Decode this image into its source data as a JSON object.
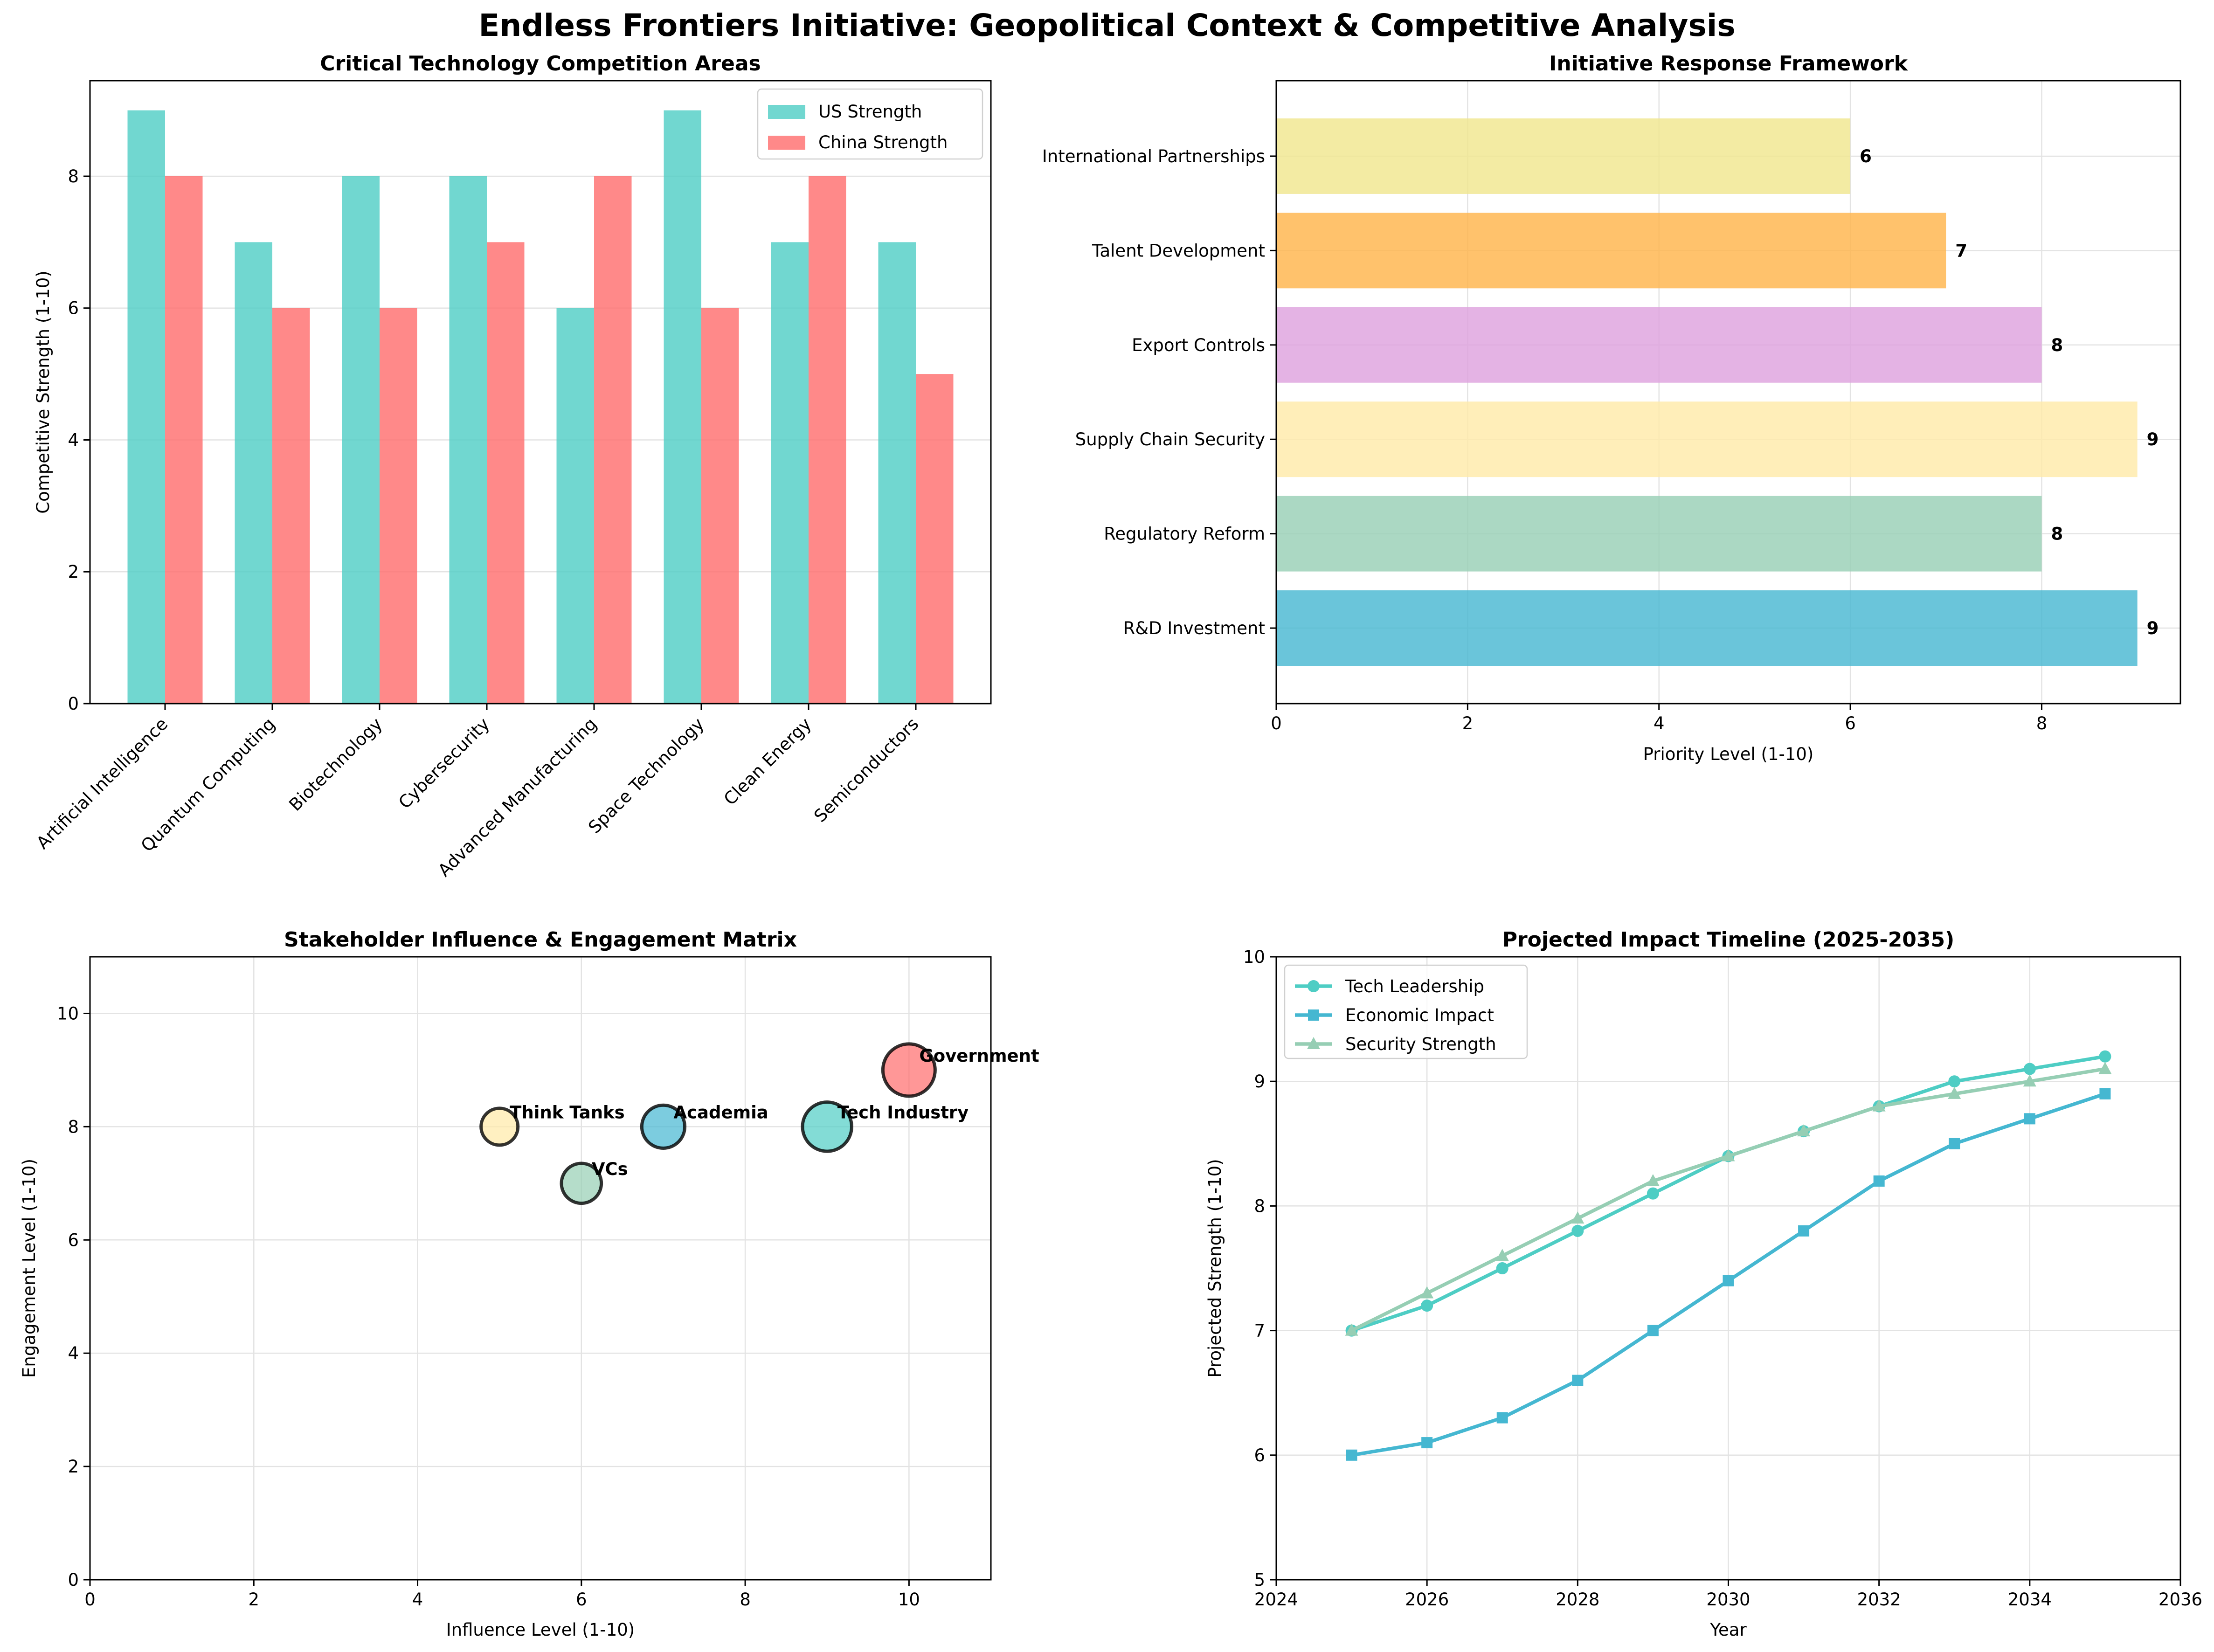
{
  "figure": {
    "title": "Endless Frontiers Initiative: Geopolitical Context & Competitive Analysis"
  },
  "chart_data": [
    {
      "type": "bar",
      "title": "Critical Technology Competition Areas",
      "xlabel": "",
      "ylabel": "Competitive Strength (1-10)",
      "categories": [
        "Artificial Intelligence",
        "Quantum Computing",
        "Biotechnology",
        "Cybersecurity",
        "Advanced Manufacturing",
        "Space Technology",
        "Clean Energy",
        "Semiconductors"
      ],
      "series": [
        {
          "name": "US Strength",
          "color": "#4ECDC4",
          "values": [
            9,
            7,
            8,
            8,
            6,
            9,
            7,
            7
          ]
        },
        {
          "name": "China Strength",
          "color": "#FF6B6B",
          "values": [
            8,
            6,
            6,
            7,
            8,
            6,
            8,
            5
          ]
        }
      ],
      "ylim": [
        0,
        9.45
      ],
      "yticks": [
        0,
        2,
        4,
        6,
        8
      ],
      "grid": true,
      "legend": "top-right"
    },
    {
      "type": "bar",
      "orientation": "horizontal",
      "title": "Initiative Response Framework",
      "xlabel": "Priority Level (1-10)",
      "ylabel": "",
      "categories": [
        "R&D Investment",
        "Regulatory Reform",
        "Supply Chain Security",
        "Export Controls",
        "Talent Development",
        "International Partnerships"
      ],
      "values": [
        9,
        8,
        9,
        8,
        7,
        6
      ],
      "value_labels": [
        "9",
        "8",
        "9",
        "8",
        "7",
        "6"
      ],
      "colors": [
        "#45B7D1",
        "#96CEB4",
        "#FFEAA7",
        "#DDA0DD",
        "#FFB347",
        "#F0E68C"
      ],
      "xlim": [
        0,
        9.45
      ],
      "xticks": [
        0,
        2,
        4,
        6,
        8
      ],
      "grid": true
    },
    {
      "type": "scatter",
      "title": "Stakeholder Influence & Engagement Matrix",
      "xlabel": "Influence Level (1-10)",
      "ylabel": "Engagement Level (1-10)",
      "points": [
        {
          "label": "Government",
          "x": 10,
          "y": 9,
          "size": 10,
          "color": "#FF6B6B"
        },
        {
          "label": "Tech Industry",
          "x": 9,
          "y": 8,
          "size": 9,
          "color": "#4ECDC4"
        },
        {
          "label": "Academia",
          "x": 7,
          "y": 8,
          "size": 7,
          "color": "#45B7D1"
        },
        {
          "label": "VCs",
          "x": 6,
          "y": 7,
          "size": 6,
          "color": "#96CEB4"
        },
        {
          "label": "Think Tanks",
          "x": 5,
          "y": 8,
          "size": 5,
          "color": "#FFEAA7"
        }
      ],
      "xlim": [
        0,
        11
      ],
      "ylim": [
        0,
        11
      ],
      "xticks": [
        0,
        2,
        4,
        6,
        8,
        10
      ],
      "yticks": [
        0,
        2,
        4,
        6,
        8,
        10
      ],
      "grid": true
    },
    {
      "type": "line",
      "title": "Projected Impact Timeline (2025-2035)",
      "xlabel": "Year",
      "ylabel": "Projected Strength (1-10)",
      "x": [
        2025,
        2026,
        2027,
        2028,
        2029,
        2030,
        2031,
        2032,
        2033,
        2034,
        2035
      ],
      "series": [
        {
          "name": "Tech Leadership",
          "color": "#4ECDC4",
          "marker": "circle",
          "values": [
            7.0,
            7.2,
            7.5,
            7.8,
            8.1,
            8.4,
            8.6,
            8.8,
            9.0,
            9.1,
            9.2
          ]
        },
        {
          "name": "Economic Impact",
          "color": "#45B7D1",
          "marker": "square",
          "values": [
            6.0,
            6.1,
            6.3,
            6.6,
            7.0,
            7.4,
            7.8,
            8.2,
            8.5,
            8.7,
            8.9
          ]
        },
        {
          "name": "Security Strength",
          "color": "#96CEB4",
          "marker": "triangle",
          "values": [
            7.0,
            7.3,
            7.6,
            7.9,
            8.2,
            8.4,
            8.6,
            8.8,
            8.9,
            9.0,
            9.1
          ]
        }
      ],
      "xlim": [
        2024,
        2036
      ],
      "ylim": [
        5,
        10
      ],
      "xticks": [
        2024,
        2026,
        2028,
        2030,
        2032,
        2034,
        2036
      ],
      "yticks": [
        5,
        6,
        7,
        8,
        9,
        10
      ],
      "grid": true,
      "legend": "top-left"
    }
  ]
}
